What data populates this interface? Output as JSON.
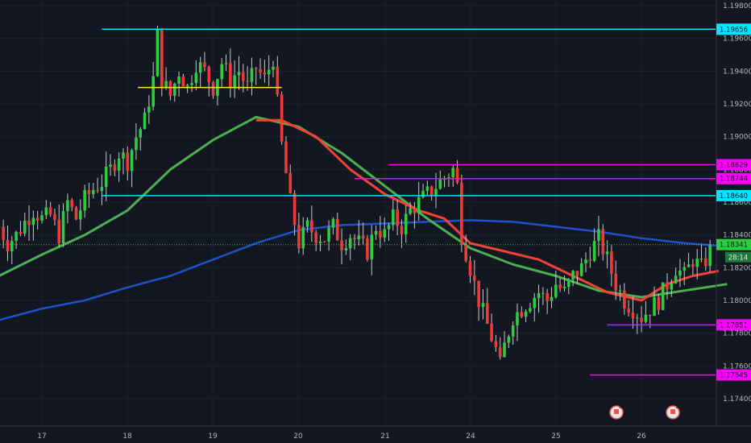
{
  "chart_data": {
    "type": "candlestick",
    "y_ticks": [
      "1.19800",
      "1.19600",
      "1.19400",
      "1.19200",
      "1.19000",
      "1.18800",
      "1.18600",
      "1.18400",
      "1.18200",
      "1.18000",
      "1.17800",
      "1.17600",
      "1.17400"
    ],
    "x_ticks": [
      "17",
      "18",
      "19",
      "20",
      "21",
      "24",
      "25",
      "26"
    ],
    "ylim": [
      1.1727,
      1.1985
    ],
    "grid": true,
    "current_price": {
      "value": 1.18341,
      "label": "1.18341",
      "countdown": "28:14"
    },
    "levels": [
      {
        "value": 1.19656,
        "label": "1.19656",
        "color": "#00e5ff",
        "from_day": 17.7
      },
      {
        "value": 1.18829,
        "label": "1.18829",
        "color": "#ff00ff",
        "from_day": 21.05
      },
      {
        "value": 1.18744,
        "label": "1.18744",
        "color": "#ff00ff",
        "from_day": 20.65
      },
      {
        "value": 1.1864,
        "label": "1.18640",
        "color": "#00e5ff",
        "from_day": 17.7
      },
      {
        "value": 1.17851,
        "label": "1.17851",
        "color": "#ff00ff",
        "from_day": 23.6
      },
      {
        "value": 1.17545,
        "label": "1.17545",
        "color": "#ff00ff",
        "from_day": 23.4
      }
    ],
    "markers": [
      {
        "name": "yellow-resistance-line",
        "value": 1.193,
        "from_day": 18.12,
        "to_day": 19.8,
        "color": "#ffeb3b"
      }
    ],
    "colors": {
      "up": "#26a69a",
      "down": "#ef5350",
      "ma_fast": "#f44336",
      "ma_mid": "#4caf50",
      "ma_slow": "#1e53c8",
      "background": "#131722"
    },
    "events": [
      {
        "label": "8"
      },
      {
        "label": "5 14"
      }
    ],
    "close_path": [
      [
        16.5,
        1.1845
      ],
      [
        16.6,
        1.1835
      ],
      [
        16.7,
        1.184
      ],
      [
        16.8,
        1.1848
      ],
      [
        16.9,
        1.1855
      ],
      [
        17.0,
        1.185
      ],
      [
        17.1,
        1.1852
      ],
      [
        17.2,
        1.184
      ],
      [
        17.3,
        1.186
      ],
      [
        17.4,
        1.185
      ],
      [
        17.5,
        1.1862
      ],
      [
        17.6,
        1.1868
      ],
      [
        17.7,
        1.1872
      ],
      [
        17.8,
        1.188
      ],
      [
        17.9,
        1.189
      ],
      [
        18.0,
        1.1885
      ],
      [
        18.1,
        1.19
      ],
      [
        18.2,
        1.191
      ],
      [
        18.3,
        1.1935
      ],
      [
        18.35,
        1.1962
      ],
      [
        18.4,
        1.1935
      ],
      [
        18.5,
        1.1925
      ],
      [
        18.6,
        1.194
      ],
      [
        18.7,
        1.193
      ],
      [
        18.8,
        1.1945
      ],
      [
        18.9,
        1.194
      ],
      [
        19.0,
        1.193
      ],
      [
        19.1,
        1.1945
      ],
      [
        19.2,
        1.1935
      ],
      [
        19.3,
        1.194
      ],
      [
        19.4,
        1.193
      ],
      [
        19.5,
        1.1942
      ],
      [
        19.6,
        1.1935
      ],
      [
        19.7,
        1.1948
      ],
      [
        19.75,
        1.192
      ],
      [
        19.8,
        1.1895
      ],
      [
        19.9,
        1.186
      ],
      [
        20.0,
        1.1835
      ],
      [
        20.1,
        1.1845
      ],
      [
        20.2,
        1.184
      ],
      [
        20.3,
        1.1838
      ],
      [
        20.4,
        1.1845
      ],
      [
        20.5,
        1.1835
      ],
      [
        20.6,
        1.184
      ],
      [
        20.7,
        1.1835
      ],
      [
        20.8,
        1.183
      ],
      [
        20.9,
        1.1845
      ],
      [
        21.0,
        1.184
      ],
      [
        21.1,
        1.185
      ],
      [
        21.2,
        1.1845
      ],
      [
        21.3,
        1.1855
      ],
      [
        21.4,
        1.186
      ],
      [
        21.5,
        1.1865
      ],
      [
        21.6,
        1.187
      ],
      [
        21.7,
        1.1875
      ],
      [
        21.8,
        1.188
      ],
      [
        21.85,
        1.187
      ],
      [
        21.9,
        1.184
      ],
      [
        22.0,
        1.182
      ],
      [
        22.1,
        1.18
      ],
      [
        22.2,
        1.1785
      ],
      [
        22.3,
        1.177
      ],
      [
        22.35,
        1.176
      ],
      [
        22.4,
        1.1772
      ],
      [
        22.5,
        1.179
      ],
      [
        22.6,
        1.1795
      ],
      [
        22.7,
        1.18
      ],
      [
        22.8,
        1.1805
      ],
      [
        22.9,
        1.18
      ],
      [
        23.0,
        1.181
      ],
      [
        23.1,
        1.1805
      ],
      [
        23.2,
        1.1815
      ],
      [
        23.3,
        1.182
      ],
      [
        23.4,
        1.183
      ],
      [
        23.5,
        1.1838
      ],
      [
        23.6,
        1.1825
      ],
      [
        23.7,
        1.181
      ],
      [
        23.8,
        1.18
      ],
      [
        23.9,
        1.1795
      ],
      [
        24.0,
        1.179
      ],
      [
        24.1,
        1.1795
      ],
      [
        24.2,
        1.18
      ],
      [
        24.3,
        1.181
      ],
      [
        24.4,
        1.182
      ],
      [
        24.5,
        1.1815
      ],
      [
        24.6,
        1.1825
      ],
      [
        24.7,
        1.182
      ],
      [
        24.8,
        1.183
      ],
      [
        24.9,
        1.1825
      ],
      [
        25.0,
        1.1835
      ],
      [
        25.1,
        1.1831
      ]
    ],
    "ma_fast_path": [
      [
        19.5,
        1.191
      ],
      [
        19.8,
        1.191
      ],
      [
        20.2,
        1.19
      ],
      [
        20.6,
        1.188
      ],
      [
        21.0,
        1.1865
      ],
      [
        21.4,
        1.1855
      ],
      [
        21.7,
        1.185
      ],
      [
        22.0,
        1.1835
      ],
      [
        22.4,
        1.183
      ],
      [
        22.8,
        1.1825
      ],
      [
        23.2,
        1.1815
      ],
      [
        23.6,
        1.1805
      ],
      [
        24.0,
        1.18
      ],
      [
        24.3,
        1.181
      ],
      [
        24.6,
        1.1815
      ],
      [
        24.9,
        1.1818
      ]
    ],
    "ma_mid_path": [
      [
        16.5,
        1.1815
      ],
      [
        17.0,
        1.1828
      ],
      [
        17.5,
        1.184
      ],
      [
        18.0,
        1.1855
      ],
      [
        18.5,
        1.188
      ],
      [
        19.0,
        1.1898
      ],
      [
        19.5,
        1.1912
      ],
      [
        20.0,
        1.1906
      ],
      [
        20.5,
        1.189
      ],
      [
        21.0,
        1.187
      ],
      [
        21.5,
        1.185
      ],
      [
        22.0,
        1.1832
      ],
      [
        22.5,
        1.1822
      ],
      [
        23.0,
        1.1815
      ],
      [
        23.5,
        1.1806
      ],
      [
        24.0,
        1.1802
      ],
      [
        24.5,
        1.1806
      ],
      [
        25.0,
        1.181
      ]
    ],
    "ma_slow_path": [
      [
        16.5,
        1.1788
      ],
      [
        17.0,
        1.1795
      ],
      [
        17.5,
        1.18
      ],
      [
        18.0,
        1.1808
      ],
      [
        18.5,
        1.1815
      ],
      [
        19.0,
        1.1825
      ],
      [
        19.5,
        1.1835
      ],
      [
        20.0,
        1.1843
      ],
      [
        20.5,
        1.1846
      ],
      [
        21.0,
        1.1847
      ],
      [
        21.5,
        1.1848
      ],
      [
        22.0,
        1.1849
      ],
      [
        22.5,
        1.1848
      ],
      [
        23.0,
        1.1845
      ],
      [
        23.5,
        1.1842
      ],
      [
        24.0,
        1.1838
      ],
      [
        24.5,
        1.1835
      ],
      [
        25.0,
        1.1833
      ]
    ]
  }
}
